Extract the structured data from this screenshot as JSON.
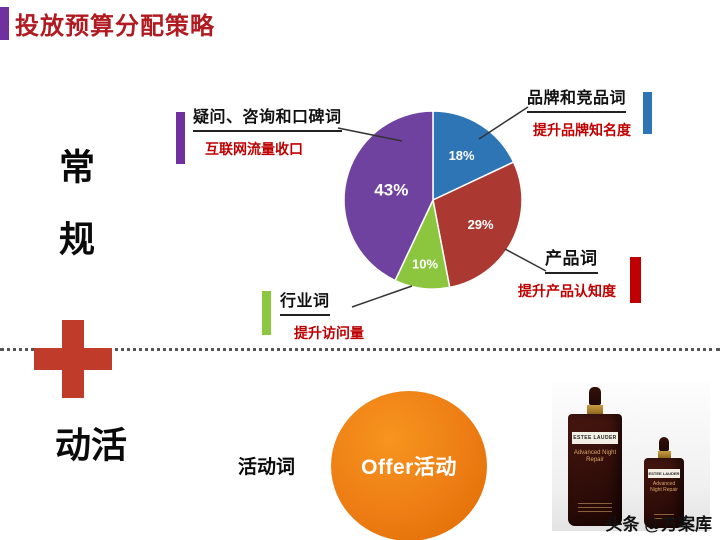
{
  "title": "投放预算分配策略",
  "left_rail": {
    "regular_label": "常规",
    "activity_label": "活动"
  },
  "chart_data": {
    "type": "pie",
    "start_angle_deg": -90,
    "direction": "clockwise",
    "slices": [
      {
        "label": "品牌和竞品词",
        "value": 18,
        "pct_label": "18%",
        "color": "#2E75B6"
      },
      {
        "label": "产品词",
        "value": 29,
        "pct_label": "29%",
        "color": "#AC3832"
      },
      {
        "label": "行业词",
        "value": 10,
        "pct_label": "10%",
        "color": "#8CC63F"
      },
      {
        "label": "疑问、咨询和口碑词",
        "value": 43,
        "pct_label": "43%",
        "color": "#6F42A0"
      }
    ]
  },
  "callouts": {
    "question": {
      "title": "疑问、咨询和口碑词",
      "subtitle": "互联网流量收口"
    },
    "brand": {
      "title": "品牌和竞品词",
      "subtitle": "提升品牌知名度"
    },
    "product": {
      "title": "产品词",
      "subtitle": "提升产品认知度"
    },
    "industry": {
      "title": "行业词",
      "subtitle": "提升访问量"
    }
  },
  "bottom_section": {
    "activity_word_label": "活动词",
    "offer_bubble_label": "Offer活动",
    "product_brand": "ESTEE LAUDER",
    "product_name": "Advanced Night Repair"
  },
  "watermark": {
    "prefix": "头条",
    "handle": "@方案库"
  },
  "colors": {
    "title_red": "#B01A20",
    "accent_purple": "#7030A0",
    "accent_blue": "#2E74B5",
    "accent_red": "#C00000",
    "accent_green": "#8DC63F",
    "plus_red": "#C13B2A",
    "offer_orange": "#ED7D14"
  }
}
